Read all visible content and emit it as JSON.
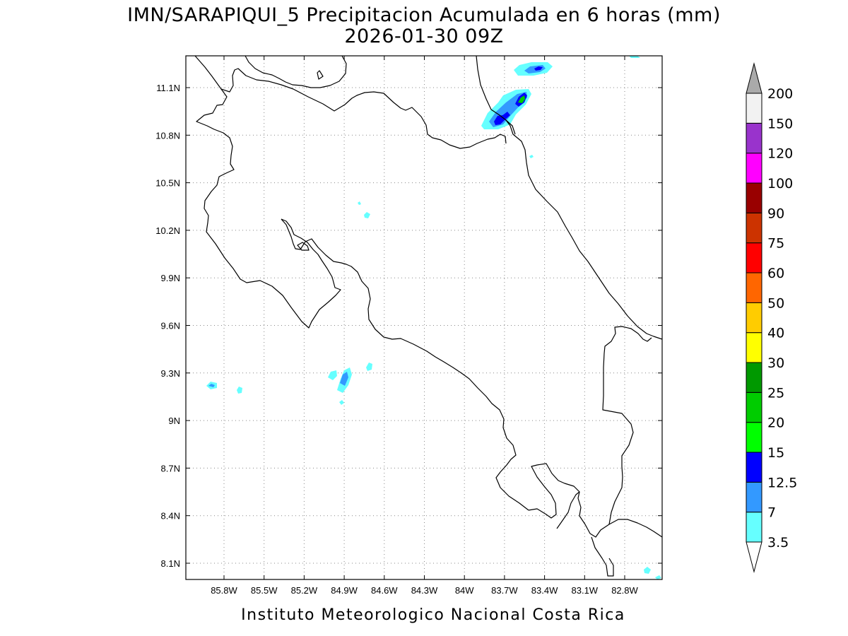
{
  "title": {
    "line1": "IMN/SARAPIQUI_5 Precipitacion Acumulada en 6 horas (mm)",
    "line2": "2026-01-30 09Z"
  },
  "footer": "Instituto Meteorologico Nacional Costa Rica",
  "map": {
    "lon_range": [
      -86.05,
      -82.6
    ],
    "lat_range": [
      8.0,
      11.2
    ],
    "lon_ticks": [
      {
        "value": -85.8,
        "label": "85.8W"
      },
      {
        "value": -85.5,
        "label": "85.5W"
      },
      {
        "value": -85.2,
        "label": "85.2W"
      },
      {
        "value": -84.9,
        "label": "84.9W"
      },
      {
        "value": -84.6,
        "label": "84.6W"
      },
      {
        "value": -84.3,
        "label": "84.3W"
      },
      {
        "value": -84.0,
        "label": "84W"
      },
      {
        "value": -83.7,
        "label": "83.7W"
      },
      {
        "value": -83.4,
        "label": "83.4W"
      },
      {
        "value": -83.1,
        "label": "83.1W"
      },
      {
        "value": -82.8,
        "label": "82.8W"
      }
    ],
    "lat_ticks": [
      {
        "value": 11.1,
        "label": "11.1N"
      },
      {
        "value": 10.8,
        "label": "10.8N"
      },
      {
        "value": 10.5,
        "label": "10.5N"
      },
      {
        "value": 10.2,
        "label": "10.2N"
      },
      {
        "value": 9.9,
        "label": "9.9N"
      },
      {
        "value": 9.6,
        "label": "9.6N"
      },
      {
        "value": 9.3,
        "label": "9.3N"
      },
      {
        "value": 9.0,
        "label": "9N"
      },
      {
        "value": 8.7,
        "label": "8.7N"
      },
      {
        "value": 8.4,
        "label": "8.4N"
      },
      {
        "value": 8.1,
        "label": "8.1N"
      }
    ],
    "grid": true
  },
  "colorbar": {
    "levels": [
      {
        "label": "3.5",
        "color": "#66ffff"
      },
      {
        "label": "7",
        "color": "#3399ff"
      },
      {
        "label": "12.5",
        "color": "#0000ff"
      },
      {
        "label": "15",
        "color": "#00ff00"
      },
      {
        "label": "20",
        "color": "#00cc00"
      },
      {
        "label": "25",
        "color": "#009900"
      },
      {
        "label": "30",
        "color": "#ffff00"
      },
      {
        "label": "40",
        "color": "#ffcc00"
      },
      {
        "label": "50",
        "color": "#ff6600"
      },
      {
        "label": "60",
        "color": "#ff0000"
      },
      {
        "label": "75",
        "color": "#cc3300"
      },
      {
        "label": "90",
        "color": "#990000"
      },
      {
        "label": "100",
        "color": "#ff00ff"
      },
      {
        "label": "120",
        "color": "#9933cc"
      },
      {
        "label": "150",
        "color": "#f2f2f2"
      },
      {
        "label": "200",
        "color": "#aaaaaa"
      }
    ]
  }
}
